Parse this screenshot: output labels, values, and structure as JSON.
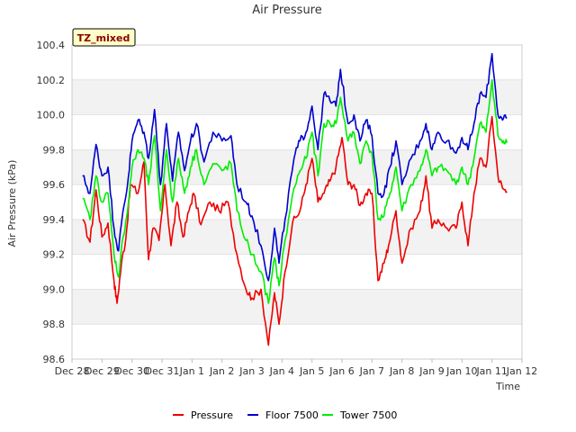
{
  "chart_data": {
    "type": "line",
    "title": "Air Pressure",
    "xlabel": "Time",
    "ylabel": "Air Pressure (kPa)",
    "badge": "TZ_mixed",
    "ylim": [
      98.6,
      100.4
    ],
    "y_ticks": [
      "98.6",
      "98.8",
      "99.0",
      "99.2",
      "99.4",
      "99.6",
      "99.8",
      "100.0",
      "100.2",
      "100.4"
    ],
    "x_ticks": [
      "Dec 28",
      "Dec 29",
      "Dec 30",
      "Dec 31",
      "Jan 1",
      "Jan 2",
      "Jan 3",
      "Jan 4",
      "Jan 5",
      "Jan 6",
      "Jan 7",
      "Jan 8",
      "Jan 9",
      "Jan 10",
      "Jan 11",
      "Jan 12"
    ],
    "x_range_days": [
      0,
      15
    ],
    "grid": true,
    "legend_position": "bottom",
    "series": [
      {
        "name": "Pressure",
        "color": "#ee0000",
        "x": [
          0.35,
          0.6,
          0.8,
          1.0,
          1.2,
          1.4,
          1.5,
          1.65,
          1.8,
          1.95,
          2.2,
          2.4,
          2.55,
          2.7,
          2.9,
          3.1,
          3.3,
          3.5,
          3.7,
          3.9,
          4.05,
          4.3,
          4.6,
          4.9,
          5.2,
          5.5,
          5.8,
          6.0,
          6.3,
          6.55,
          6.75,
          6.9,
          7.1,
          7.35,
          7.6,
          7.8,
          8.0,
          8.2,
          8.4,
          8.6,
          8.8,
          9.0,
          9.2,
          9.4,
          9.6,
          9.8,
          10.0,
          10.2,
          10.4,
          10.55,
          10.8,
          11.0,
          11.3,
          11.6,
          11.8,
          12.0,
          12.2,
          12.5,
          12.8,
          13.0,
          13.2,
          13.4,
          13.6,
          13.8,
          14.0,
          14.2,
          14.35,
          14.5
        ],
        "values": [
          99.4,
          99.27,
          99.57,
          99.3,
          99.38,
          99.05,
          98.92,
          99.15,
          99.3,
          99.6,
          99.55,
          99.73,
          99.17,
          99.35,
          99.28,
          99.6,
          99.25,
          99.5,
          99.3,
          99.45,
          99.55,
          99.37,
          99.5,
          99.45,
          99.5,
          99.2,
          99.0,
          98.95,
          99.0,
          98.68,
          98.98,
          98.8,
          99.1,
          99.38,
          99.45,
          99.6,
          99.75,
          99.5,
          99.55,
          99.62,
          99.7,
          99.87,
          99.6,
          99.6,
          99.48,
          99.55,
          99.55,
          99.05,
          99.15,
          99.25,
          99.45,
          99.15,
          99.35,
          99.45,
          99.65,
          99.35,
          99.4,
          99.35,
          99.35,
          99.5,
          99.25,
          99.55,
          99.75,
          99.7,
          99.99,
          99.65,
          99.58,
          99.56
        ]
      },
      {
        "name": "Floor 7500",
        "color": "#0000cc",
        "x": [
          0.35,
          0.6,
          0.8,
          1.0,
          1.2,
          1.4,
          1.55,
          1.7,
          1.85,
          2.0,
          2.2,
          2.4,
          2.55,
          2.75,
          2.95,
          3.15,
          3.35,
          3.55,
          3.75,
          3.95,
          4.15,
          4.4,
          4.7,
          5.0,
          5.3,
          5.5,
          5.8,
          6.0,
          6.3,
          6.55,
          6.75,
          6.9,
          7.1,
          7.4,
          7.6,
          7.8,
          8.0,
          8.2,
          8.4,
          8.6,
          8.8,
          8.95,
          9.2,
          9.4,
          9.6,
          9.8,
          10.0,
          10.2,
          10.4,
          10.6,
          10.8,
          11.0,
          11.3,
          11.6,
          11.8,
          12.0,
          12.2,
          12.5,
          12.8,
          13.0,
          13.2,
          13.4,
          13.6,
          13.8,
          14.0,
          14.2,
          14.35,
          14.5
        ],
        "values": [
          99.65,
          99.55,
          99.83,
          99.65,
          99.7,
          99.35,
          99.22,
          99.45,
          99.6,
          99.85,
          99.97,
          99.9,
          99.75,
          100.03,
          99.6,
          99.95,
          99.62,
          99.9,
          99.68,
          99.85,
          99.95,
          99.73,
          99.9,
          99.85,
          99.88,
          99.6,
          99.5,
          99.42,
          99.25,
          99.05,
          99.35,
          99.15,
          99.4,
          99.75,
          99.85,
          99.9,
          100.05,
          99.8,
          100.12,
          100.08,
          100.05,
          100.26,
          99.95,
          100.0,
          99.85,
          99.97,
          99.88,
          99.55,
          99.55,
          99.7,
          99.85,
          99.6,
          99.75,
          99.85,
          99.95,
          99.8,
          99.9,
          99.85,
          99.78,
          99.87,
          99.8,
          99.95,
          100.12,
          100.1,
          100.35,
          100.0,
          99.97,
          99.98
        ]
      },
      {
        "name": "Tower 7500",
        "color": "#00ee00",
        "x": [
          0.35,
          0.6,
          0.8,
          1.0,
          1.2,
          1.4,
          1.55,
          1.7,
          1.85,
          2.0,
          2.2,
          2.4,
          2.55,
          2.75,
          2.95,
          3.15,
          3.35,
          3.55,
          3.75,
          3.95,
          4.15,
          4.4,
          4.7,
          5.0,
          5.3,
          5.5,
          5.8,
          6.0,
          6.3,
          6.55,
          6.75,
          6.9,
          7.1,
          7.4,
          7.6,
          7.8,
          8.0,
          8.2,
          8.4,
          8.6,
          8.8,
          8.95,
          9.2,
          9.4,
          9.6,
          9.8,
          10.0,
          10.2,
          10.4,
          10.6,
          10.8,
          11.0,
          11.3,
          11.6,
          11.8,
          12.0,
          12.2,
          12.5,
          12.8,
          13.0,
          13.2,
          13.4,
          13.6,
          13.8,
          14.0,
          14.2,
          14.35,
          14.5
        ],
        "values": [
          99.52,
          99.4,
          99.65,
          99.5,
          99.55,
          99.2,
          99.07,
          99.3,
          99.45,
          99.7,
          99.8,
          99.75,
          99.6,
          99.88,
          99.45,
          99.8,
          99.5,
          99.75,
          99.55,
          99.7,
          99.8,
          99.6,
          99.72,
          99.68,
          99.72,
          99.45,
          99.28,
          99.2,
          99.1,
          98.92,
          99.18,
          99.02,
          99.28,
          99.58,
          99.68,
          99.75,
          99.9,
          99.65,
          99.95,
          99.95,
          99.95,
          100.1,
          99.85,
          99.9,
          99.72,
          99.85,
          99.78,
          99.4,
          99.42,
          99.55,
          99.7,
          99.45,
          99.6,
          99.68,
          99.8,
          99.65,
          99.7,
          99.68,
          99.6,
          99.7,
          99.6,
          99.75,
          99.95,
          99.9,
          100.2,
          99.88,
          99.84,
          99.84
        ]
      }
    ]
  }
}
